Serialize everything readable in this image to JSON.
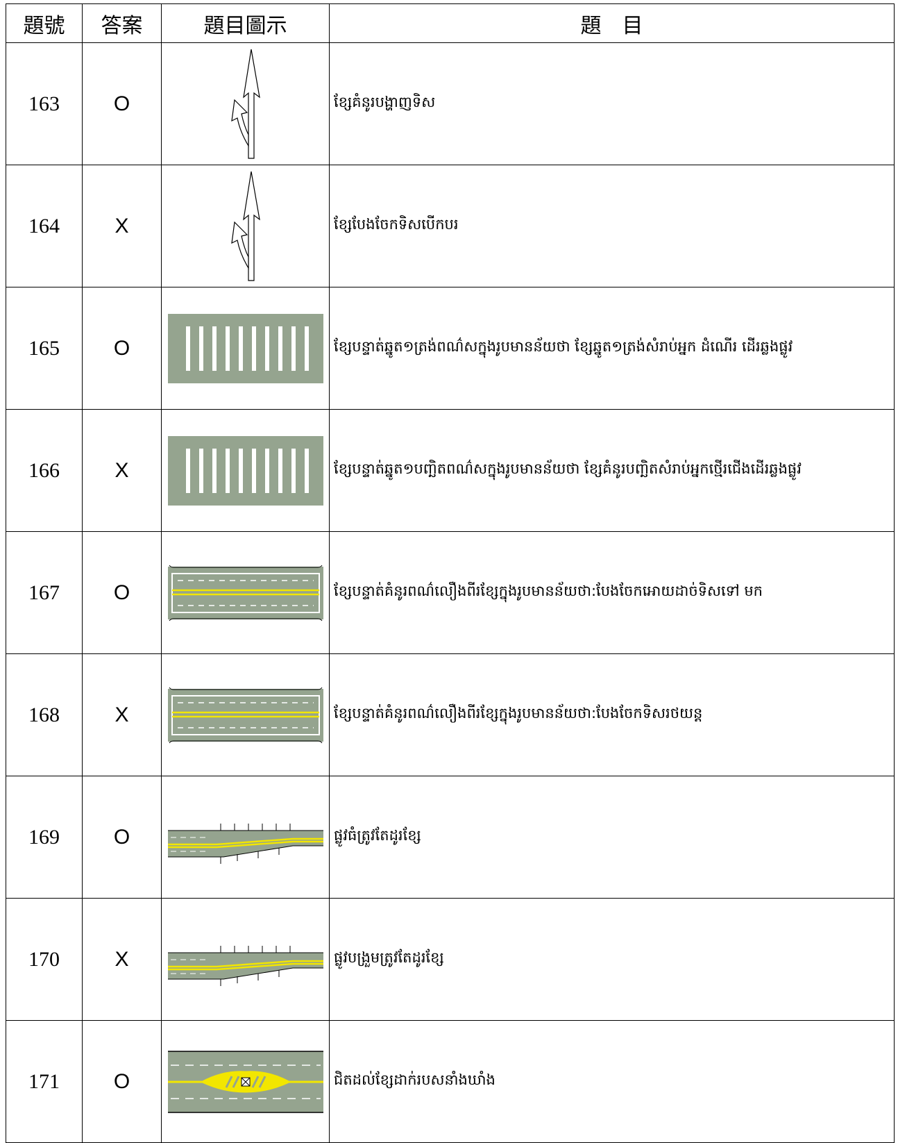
{
  "table": {
    "header": [
      "題號",
      "答案",
      "題目圖示",
      "題　目"
    ],
    "rows": [
      {
        "number": 163,
        "answer": "O",
        "text": "ខ្សែគំនូរបង្ហាញទិស"
      },
      {
        "number": 164,
        "answer": "X",
        "text": "ខ្សែបែងចែកទិសបើកបរ"
      },
      {
        "number": 165,
        "answer": "O",
        "text": "ខ្សែបន្ទាត់ឆ្នូត១ត្រង់ពណ៌សក្នុងរូបមានន័យថា ខ្សែឆ្នូត១ត្រង់សំរាប់អ្នក ដំណើរ ដើរឆ្លងផ្លូវ"
      },
      {
        "number": 166,
        "answer": "X",
        "text": "ខ្សែបន្ទាត់ឆ្នូត១បញ្ឆិតពណ៌សក្នុងរូបមានន័យថា ខ្សែគំនូរបញ្ឆិតសំរាប់អ្នកថ្មើរជើងដើរឆ្លងផ្លូវ"
      },
      {
        "number": 167,
        "answer": "O",
        "text": "ខ្សែបន្ទាត់គំនូរពណ៌លឿងពីរខ្សែក្នុងរូបមានន័យថា:បែងចែកអោយដាច់ទិសទៅ មក"
      },
      {
        "number": 168,
        "answer": "X",
        "text": "ខ្សែបន្ទាត់គំនូរពណ៌លឿងពីរខ្សែក្នុងរូបមានន័យថា:បែងចែកទិសរថយន្ត"
      },
      {
        "number": 169,
        "answer": "O",
        "text": "ផ្លូវធំត្រូវតែដូរខ្សែ"
      },
      {
        "number": 170,
        "answer": "X",
        "text": "ផ្លូវបង្រួមត្រូវតែដូរខ្សែ"
      },
      {
        "number": 171,
        "answer": "O",
        "text": "ជិតដល់ខ្សែដាក់របសនាំងឃាំង"
      }
    ]
  }
}
